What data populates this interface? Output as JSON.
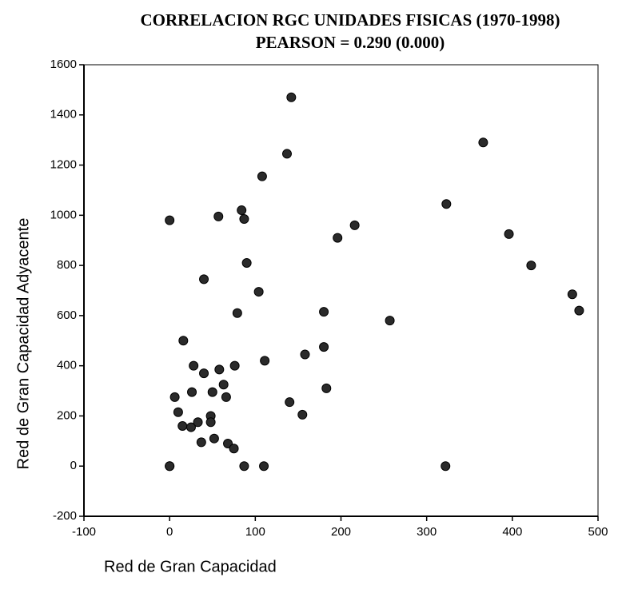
{
  "chart_data": {
    "type": "scatter",
    "title": "CORRELACION RGC UNIDADES FISICAS (1970-1998)",
    "subtitle": "PEARSON = 0.290 (0.000)",
    "x_label": "Red de Gran Capacidad",
    "y_label": "Red de Gran Capacidad Adyacente",
    "color": "#2a2a2a",
    "xlim": [
      -100,
      500
    ],
    "xticks": [
      -100,
      0,
      100,
      200,
      300,
      400,
      500
    ],
    "ylim": [
      -200,
      1600
    ],
    "yticks": [
      -200,
      0,
      200,
      400,
      600,
      800,
      1000,
      1200,
      1400,
      1600
    ],
    "series": [
      {
        "name": null,
        "x": [
          0,
          0,
          0,
          6,
          10,
          15,
          16,
          25,
          26,
          28,
          33,
          37,
          40,
          40,
          48,
          48,
          50,
          52,
          57,
          58,
          63,
          66,
          68,
          75,
          76,
          79,
          84,
          87,
          87,
          90,
          104,
          108,
          110,
          111,
          137,
          140,
          142,
          155,
          158,
          180,
          180,
          183,
          196,
          216,
          257,
          322,
          323,
          366,
          396,
          422,
          470,
          478
        ],
        "values": [
          980,
          0,
          0,
          275,
          215,
          160,
          500,
          155,
          295,
          400,
          175,
          95,
          370,
          745,
          200,
          175,
          295,
          110,
          995,
          385,
          325,
          275,
          90,
          70,
          400,
          610,
          1020,
          985,
          0,
          810,
          695,
          1155,
          0,
          420,
          1245,
          255,
          1470,
          205,
          445,
          475,
          615,
          310,
          910,
          960,
          580,
          0,
          1045,
          1290,
          925,
          800,
          685,
          620
        ]
      }
    ]
  }
}
